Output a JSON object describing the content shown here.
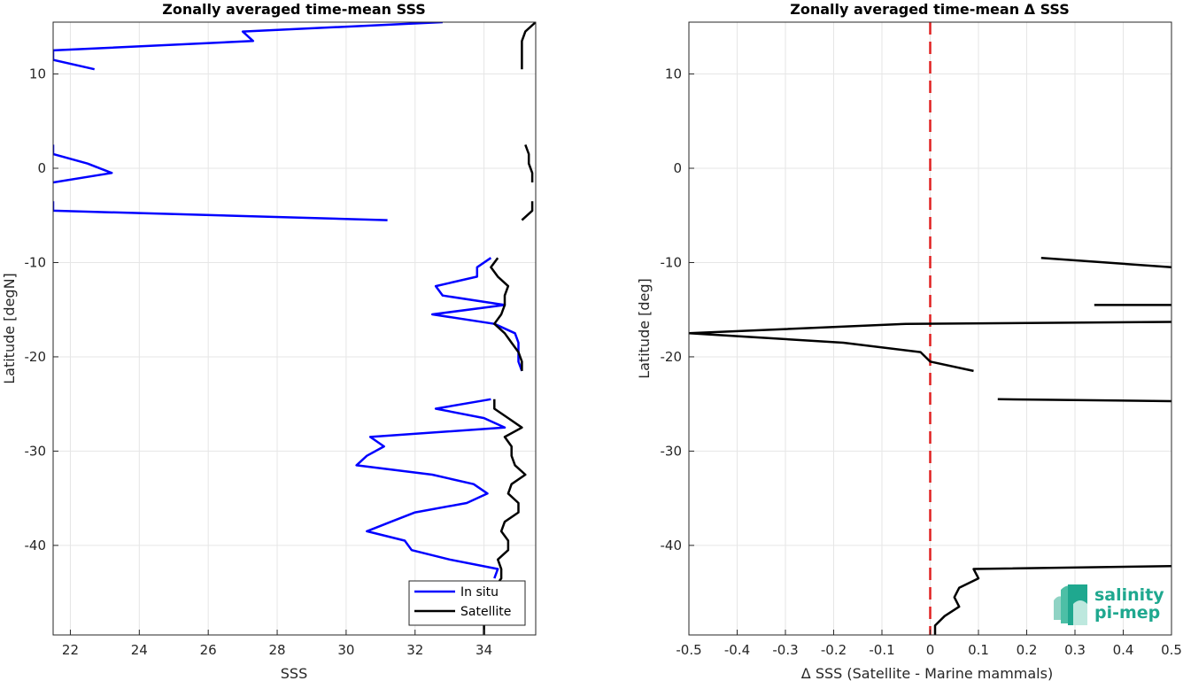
{
  "charts": [
    {
      "title": "Zonally averaged time-mean SSS",
      "xlabel": "SSS",
      "ylabel": "Latitude [degN]",
      "xlim": [
        21.5,
        35.5
      ],
      "ylim": [
        -49.5,
        15.5
      ],
      "xticks": [
        22,
        24,
        26,
        28,
        30,
        32,
        34
      ],
      "yticks": [
        10,
        0,
        -10,
        -20,
        -30,
        -40
      ],
      "legend": {
        "position": "bottom-right",
        "items": [
          "In situ",
          "Satellite"
        ]
      }
    },
    {
      "title": "Zonally averaged time-mean Δ SSS",
      "xlabel": "Δ SSS (Satellite - Marine mammals)",
      "ylabel": "Latitude [deg]",
      "xlim": [
        -0.5,
        0.5
      ],
      "ylim": [
        -49.5,
        15.5
      ],
      "xticks": [
        -0.5,
        -0.4,
        -0.3,
        -0.2,
        -0.1,
        0,
        0.1,
        0.2,
        0.3,
        0.4,
        0.5
      ],
      "yticks": [
        10,
        0,
        -10,
        -20,
        -30,
        -40
      ]
    }
  ],
  "logo": {
    "line1": "salinity",
    "line2": "pi-mep"
  },
  "chart_data": [
    {
      "type": "line",
      "title": "Zonally averaged time-mean SSS",
      "xlabel": "SSS",
      "ylabel": "Latitude [degN]",
      "xlim": [
        21.5,
        35.5
      ],
      "ylim": [
        -49.5,
        15.5
      ],
      "grid": true,
      "legend_position": "bottom-right",
      "series": [
        {
          "name": "In situ",
          "color": "#0000ff",
          "segments": [
            [
              [
                32.8,
                15.5
              ],
              [
                27.0,
                14.5
              ],
              [
                27.3,
                13.5
              ],
              [
                21.5,
                12.5
              ],
              [
                21.5,
                11.5
              ],
              [
                22.7,
                10.5
              ]
            ],
            [
              [
                21.5,
                2.5
              ],
              [
                21.5,
                1.5
              ],
              [
                22.5,
                0.5
              ],
              [
                23.2,
                -0.5
              ],
              [
                21.5,
                -1.5
              ]
            ],
            [
              [
                21.5,
                -3.5
              ],
              [
                21.5,
                -4.5
              ],
              [
                31.2,
                -5.5
              ]
            ],
            [
              [
                34.2,
                -9.5
              ],
              [
                33.8,
                -10.5
              ],
              [
                33.8,
                -11.5
              ],
              [
                32.6,
                -12.5
              ],
              [
                32.8,
                -13.5
              ],
              [
                34.6,
                -14.5
              ],
              [
                32.5,
                -15.5
              ],
              [
                34.3,
                -16.5
              ],
              [
                34.9,
                -17.5
              ],
              [
                35.0,
                -18.5
              ],
              [
                35.0,
                -19.5
              ],
              [
                35.0,
                -20.5
              ],
              [
                35.1,
                -21.5
              ]
            ],
            [
              [
                34.2,
                -24.5
              ],
              [
                32.6,
                -25.5
              ],
              [
                34.0,
                -26.5
              ],
              [
                34.6,
                -27.5
              ],
              [
                30.7,
                -28.5
              ],
              [
                31.1,
                -29.5
              ],
              [
                30.6,
                -30.5
              ],
              [
                30.3,
                -31.5
              ],
              [
                32.5,
                -32.5
              ],
              [
                33.7,
                -33.5
              ],
              [
                34.1,
                -34.5
              ],
              [
                33.5,
                -35.5
              ],
              [
                32.0,
                -36.5
              ],
              [
                31.3,
                -37.5
              ],
              [
                30.6,
                -38.5
              ],
              [
                31.7,
                -39.5
              ],
              [
                31.9,
                -40.5
              ],
              [
                33.0,
                -41.5
              ],
              [
                34.4,
                -42.5
              ],
              [
                34.3,
                -43.5
              ]
            ]
          ]
        },
        {
          "name": "Satellite",
          "color": "#000000",
          "segments": [
            [
              [
                35.5,
                15.5
              ],
              [
                35.2,
                14.5
              ],
              [
                35.1,
                13.5
              ],
              [
                35.1,
                12.5
              ],
              [
                35.1,
                11.5
              ],
              [
                35.1,
                10.5
              ]
            ],
            [
              [
                35.2,
                2.5
              ],
              [
                35.3,
                1.5
              ],
              [
                35.3,
                0.5
              ],
              [
                35.4,
                -0.5
              ],
              [
                35.4,
                -1.5
              ]
            ],
            [
              [
                35.4,
                -3.5
              ],
              [
                35.4,
                -4.5
              ],
              [
                35.1,
                -5.5
              ]
            ],
            [
              [
                34.4,
                -9.5
              ],
              [
                34.2,
                -10.5
              ],
              [
                34.4,
                -11.5
              ],
              [
                34.7,
                -12.5
              ],
              [
                34.6,
                -13.5
              ],
              [
                34.6,
                -14.5
              ],
              [
                34.5,
                -15.5
              ],
              [
                34.3,
                -16.5
              ],
              [
                34.6,
                -17.5
              ],
              [
                34.8,
                -18.5
              ],
              [
                35.0,
                -19.5
              ],
              [
                35.1,
                -20.5
              ],
              [
                35.1,
                -21.5
              ]
            ],
            [
              [
                34.3,
                -24.5
              ],
              [
                34.3,
                -25.5
              ],
              [
                34.7,
                -26.5
              ],
              [
                35.1,
                -27.5
              ],
              [
                34.6,
                -28.5
              ],
              [
                34.8,
                -29.5
              ],
              [
                34.8,
                -30.5
              ],
              [
                34.9,
                -31.5
              ],
              [
                35.2,
                -32.5
              ],
              [
                34.8,
                -33.5
              ],
              [
                34.7,
                -34.5
              ],
              [
                35.0,
                -35.5
              ],
              [
                35.0,
                -36.5
              ],
              [
                34.6,
                -37.5
              ],
              [
                34.5,
                -38.5
              ],
              [
                34.7,
                -39.5
              ],
              [
                34.7,
                -40.5
              ],
              [
                34.4,
                -41.5
              ],
              [
                34.5,
                -42.5
              ],
              [
                34.5,
                -43.5
              ],
              [
                34.3,
                -44.5
              ],
              [
                34.3,
                -45.5
              ],
              [
                34.2,
                -46.5
              ],
              [
                34.1,
                -47.5
              ],
              [
                34.0,
                -48.5
              ],
              [
                34.0,
                -49.5
              ]
            ]
          ]
        }
      ]
    },
    {
      "type": "line",
      "title": "Zonally averaged time-mean Δ SSS",
      "xlabel": "Δ SSS (Satellite - Marine mammals)",
      "ylabel": "Latitude [deg]",
      "xlim": [
        -0.5,
        0.5
      ],
      "ylim": [
        -49.5,
        15.5
      ],
      "grid": true,
      "reference_line": {
        "x": 0,
        "color": "#e02020",
        "style": "dashed"
      },
      "series": [
        {
          "color": "#000000",
          "segments": [
            [
              [
                0.23,
                -9.5
              ],
              [
                0.5,
                -10.5
              ]
            ],
            [
              [
                0.34,
                -14.5
              ],
              [
                0.5,
                -14.5
              ]
            ],
            [
              [
                0.5,
                -16.3
              ],
              [
                -0.05,
                -16.5
              ],
              [
                -0.5,
                -17.5
              ],
              [
                -0.18,
                -18.5
              ],
              [
                -0.02,
                -19.5
              ],
              [
                0.0,
                -20.5
              ],
              [
                0.09,
                -21.5
              ]
            ],
            [
              [
                0.14,
                -24.5
              ],
              [
                0.5,
                -24.7
              ]
            ],
            [
              [
                0.5,
                -42.2
              ],
              [
                0.09,
                -42.5
              ],
              [
                0.1,
                -43.5
              ],
              [
                0.06,
                -44.5
              ],
              [
                0.05,
                -45.5
              ],
              [
                0.06,
                -46.5
              ],
              [
                0.03,
                -47.5
              ],
              [
                0.01,
                -48.5
              ],
              [
                0.01,
                -49.5
              ]
            ]
          ]
        }
      ]
    }
  ]
}
